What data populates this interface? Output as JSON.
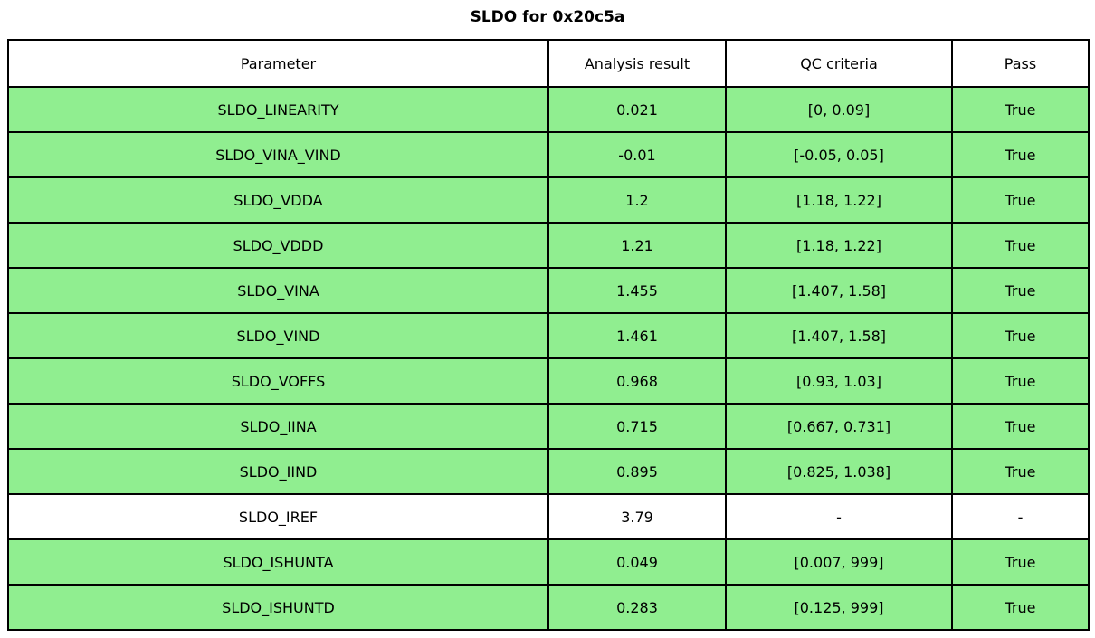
{
  "title": "SLDO for 0x20c5a",
  "table": {
    "columns": [
      "Parameter",
      "Analysis result",
      "QC criteria",
      "Pass"
    ],
    "rows": [
      {
        "parameter": "SLDO_LINEARITY",
        "result": "0.021",
        "criteria": "[0, 0.09]",
        "pass": "True",
        "highlight": true
      },
      {
        "parameter": "SLDO_VINA_VIND",
        "result": "-0.01",
        "criteria": "[-0.05, 0.05]",
        "pass": "True",
        "highlight": true
      },
      {
        "parameter": "SLDO_VDDA",
        "result": "1.2",
        "criteria": "[1.18, 1.22]",
        "pass": "True",
        "highlight": true
      },
      {
        "parameter": "SLDO_VDDD",
        "result": "1.21",
        "criteria": "[1.18, 1.22]",
        "pass": "True",
        "highlight": true
      },
      {
        "parameter": "SLDO_VINA",
        "result": "1.455",
        "criteria": "[1.407, 1.58]",
        "pass": "True",
        "highlight": true
      },
      {
        "parameter": "SLDO_VIND",
        "result": "1.461",
        "criteria": "[1.407, 1.58]",
        "pass": "True",
        "highlight": true
      },
      {
        "parameter": "SLDO_VOFFS",
        "result": "0.968",
        "criteria": "[0.93, 1.03]",
        "pass": "True",
        "highlight": true
      },
      {
        "parameter": "SLDO_IINA",
        "result": "0.715",
        "criteria": "[0.667, 0.731]",
        "pass": "True",
        "highlight": true
      },
      {
        "parameter": "SLDO_IIND",
        "result": "0.895",
        "criteria": "[0.825, 1.038]",
        "pass": "True",
        "highlight": true
      },
      {
        "parameter": "SLDO_IREF",
        "result": "3.79",
        "criteria": "-",
        "pass": "-",
        "highlight": false
      },
      {
        "parameter": "SLDO_ISHUNTA",
        "result": "0.049",
        "criteria": "[0.007, 999]",
        "pass": "True",
        "highlight": true
      },
      {
        "parameter": "SLDO_ISHUNTD",
        "result": "0.283",
        "criteria": "[0.125, 999]",
        "pass": "True",
        "highlight": true
      }
    ],
    "colors": {
      "pass_row": "#90ee90",
      "neutral_row": "#ffffff",
      "border": "#000000",
      "text": "#000000"
    }
  }
}
